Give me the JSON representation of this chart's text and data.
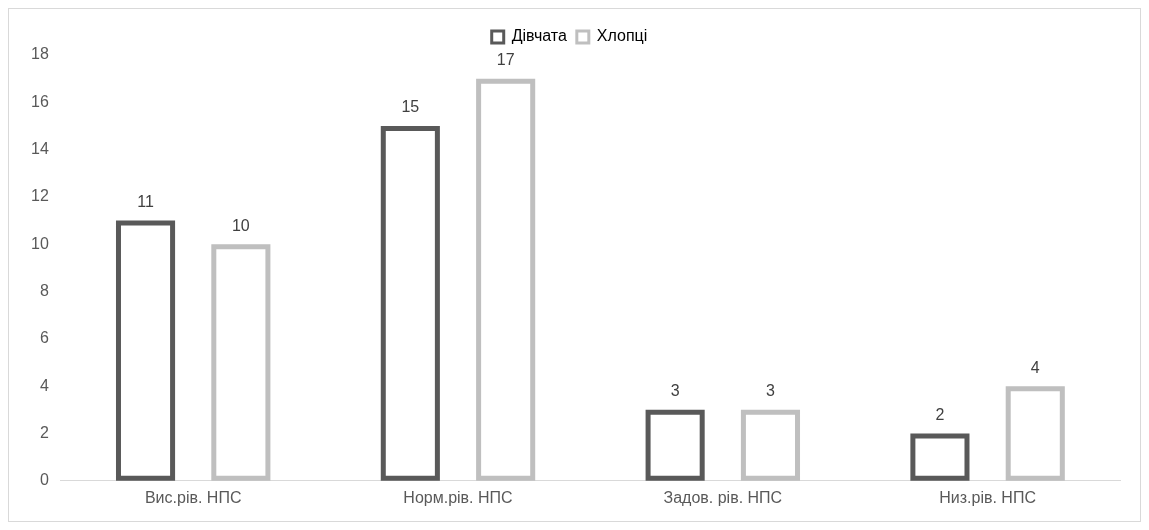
{
  "chart_data": {
    "type": "bar",
    "categories": [
      "Вис.рів. НПС",
      "Норм.рів. НПС",
      "Задов. рів. НПС",
      "Низ.рів. НПС"
    ],
    "series": [
      {
        "name": "Дівчата",
        "color": "#595959",
        "values": [
          11,
          15,
          3,
          2
        ]
      },
      {
        "name": "Хлопці",
        "color": "#bfbfbf",
        "values": [
          10,
          17,
          3,
          4
        ]
      }
    ],
    "ylim": [
      0,
      18
    ],
    "yticks": [
      0,
      2,
      4,
      6,
      8,
      10,
      12,
      14,
      16,
      18
    ],
    "grid": false,
    "legend": "top",
    "data_labels": true
  }
}
